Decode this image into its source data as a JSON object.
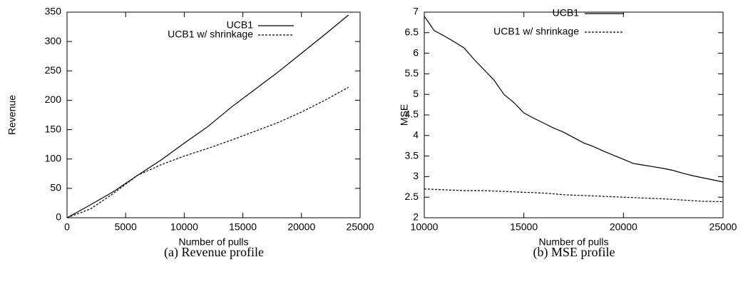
{
  "chart_data": [
    {
      "type": "line",
      "caption": "(a) Revenue profile",
      "xlabel": "Number of pulls",
      "ylabel": "Revenue",
      "xlim": [
        0,
        25000
      ],
      "xticks": [
        0,
        5000,
        10000,
        15000,
        20000,
        25000
      ],
      "ylim": [
        0,
        350
      ],
      "yticks": [
        0,
        50,
        100,
        150,
        200,
        250,
        300,
        350
      ],
      "legend": "top right",
      "series": [
        {
          "name": "UCB1",
          "color": "#000000",
          "dash": "solid",
          "x": [
            0,
            2000,
            4000,
            6000,
            8000,
            10000,
            12000,
            14000,
            16000,
            18000,
            20000,
            22000,
            24000
          ],
          "values": [
            0,
            22,
            45,
            72,
            98,
            127,
            155,
            188,
            218,
            248,
            280,
            312,
            345
          ]
        },
        {
          "name": "UCB1 w/ shrinkage",
          "color": "#000000",
          "dash": "dotted",
          "x": [
            0,
            2000,
            4000,
            6000,
            8000,
            10000,
            12000,
            14000,
            16000,
            18000,
            20000,
            22000,
            24000
          ],
          "values": [
            0,
            15,
            42,
            72,
            90,
            105,
            118,
            132,
            147,
            162,
            180,
            200,
            222
          ]
        }
      ]
    },
    {
      "type": "line",
      "caption": "(b) MSE profile",
      "xlabel": "Number of pulls",
      "ylabel": "MSE",
      "xlim": [
        10000,
        25000
      ],
      "xticks": [
        10000,
        15000,
        20000,
        25000
      ],
      "ylim": [
        2,
        7
      ],
      "yticks": [
        2,
        2.5,
        3,
        3.5,
        4,
        4.5,
        5,
        5.5,
        6,
        6.5,
        7
      ],
      "legend": "top right",
      "series": [
        {
          "name": "UCB1",
          "color": "#000000",
          "dash": "solid",
          "x": [
            10000,
            10500,
            11000,
            11500,
            12000,
            12500,
            13000,
            13500,
            14000,
            14500,
            15000,
            15500,
            16000,
            16500,
            17000,
            17500,
            18000,
            18500,
            19000,
            19500,
            20000,
            20500,
            21000,
            21500,
            22000,
            22500,
            23000,
            23500,
            24000,
            24500,
            25000
          ],
          "values": [
            6.9,
            6.55,
            6.42,
            6.28,
            6.13,
            5.85,
            5.6,
            5.35,
            5.0,
            4.8,
            4.55,
            4.42,
            4.3,
            4.18,
            4.08,
            3.95,
            3.82,
            3.73,
            3.62,
            3.52,
            3.42,
            3.32,
            3.28,
            3.24,
            3.2,
            3.15,
            3.08,
            3.02,
            2.97,
            2.92,
            2.87
          ]
        },
        {
          "name": "UCB1 w/ shrinkage",
          "color": "#000000",
          "dash": "dotted",
          "x": [
            10000,
            11000,
            12000,
            13000,
            14000,
            15000,
            16000,
            17000,
            18000,
            19000,
            20000,
            21000,
            22000,
            23000,
            24000,
            25000
          ],
          "values": [
            2.7,
            2.68,
            2.66,
            2.66,
            2.64,
            2.62,
            2.6,
            2.56,
            2.54,
            2.52,
            2.5,
            2.48,
            2.46,
            2.43,
            2.4,
            2.39
          ]
        }
      ]
    }
  ]
}
